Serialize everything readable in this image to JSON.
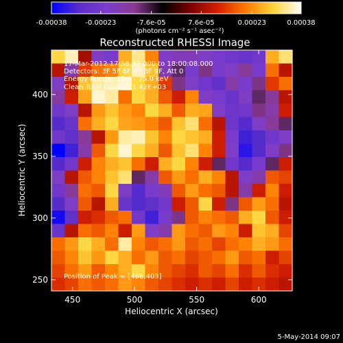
{
  "chart_data": {
    "type": "heatmap",
    "title": "Reconstructed RHESSI Image",
    "xlabel": "Heliocentric X (arcsec)",
    "ylabel": "Heliocentric Y (arcsec)",
    "xlim": [
      433,
      627
    ],
    "ylim": [
      241,
      436
    ],
    "x_ticks": [
      450,
      500,
      550,
      600
    ],
    "y_ticks": [
      250,
      300,
      350,
      400
    ],
    "grid": false,
    "colorbar": {
      "range": [
        -0.00038,
        0.00038
      ],
      "tick_values": [
        -0.00038,
        -0.00023,
        -7.6e-05,
        7.6e-05,
        0.00023,
        0.00038
      ],
      "tick_labels": [
        "-0.00038",
        "-0.00023",
        "-7.6e-05",
        "7.6e-05",
        "0.00023",
        "0.00038"
      ],
      "unit_label": "(photons cm⁻² s⁻¹ asec⁻²)",
      "colors": [
        "#0000ff",
        "#5a2ec8",
        "#7d3ccc",
        "#8a3a90",
        "#000000",
        "#7a0000",
        "#d42000",
        "#ff7a00",
        "#ffd43a",
        "#ffffff"
      ]
    },
    "annotations": {
      "time": "17-Mar-2012 17:58:32.000 to 18:00:08.000",
      "detectors": "Detectors: 3F 5F 6F 7F 8F 9F, Att 0",
      "energy": "Energy Range: 12.0 - 25.0 keV",
      "clean": "Clean     Total Counts: 1.42E+03",
      "peak": "Position of Peak = [486,403]"
    },
    "peak_position": [
      486,
      403
    ],
    "z": [
      [
        0.0003,
        0.00035,
        8e-05,
        -0.0002,
        -0.00022,
        0.00026,
        0.00033,
        0.00022,
        -0.0002,
        -0.00018,
        -0.00018,
        -0.0002,
        -0.00022,
        -0.00024,
        -0.00026,
        -0.00024,
        0.00026,
        0.00032
      ],
      [
        0.0001,
        -0.00016,
        0.00015,
        0.0002,
        0.00022,
        0.0003,
        0.00035,
        0.00028,
        -0.00018,
        -0.0001,
        -0.00022,
        -0.00012,
        -0.00022,
        -0.0002,
        -0.00014,
        -0.00022,
        0.0002,
        0.0001
      ],
      [
        -0.0002,
        0.0001,
        0.00028,
        0.00034,
        0.00035,
        0.00036,
        0.0003,
        0.00026,
        0.00015,
        -0.00012,
        -0.0002,
        -0.00024,
        -0.00028,
        -0.00016,
        -0.00022,
        -0.00012,
        0.00015,
        0.0002
      ],
      [
        -0.00015,
        0.00012,
        0.00025,
        0.00036,
        0.00034,
        0.0002,
        0.0003,
        0.00026,
        0.00018,
        0.00012,
        0.00022,
        -0.0002,
        -0.00022,
        -0.00026,
        -0.0002,
        -0.0001,
        -0.00014,
        0.0001
      ],
      [
        -0.00024,
        -0.0002,
        0.0001,
        0.00024,
        0.00028,
        0.00024,
        0.00022,
        0.0003,
        0.00026,
        0.00018,
        0.00026,
        0.00025,
        -0.0002,
        -0.00025,
        -0.00024,
        -0.00012,
        -0.00016,
        0.00012
      ],
      [
        -0.0003,
        -0.00026,
        0.0002,
        0.00026,
        0.0003,
        0.00025,
        0.00024,
        0.00022,
        0.00018,
        0.00028,
        0.00032,
        0.0002,
        0.0001,
        -0.00025,
        -0.0003,
        -0.0002,
        -0.00014,
        -0.0001
      ],
      [
        -0.00024,
        -0.00028,
        -0.00014,
        0.0001,
        0.00024,
        0.00034,
        0.00035,
        0.00028,
        0.00022,
        0.0003,
        0.00028,
        0.00026,
        0.00012,
        -0.00022,
        -0.00032,
        -0.0003,
        -0.00024,
        -0.0002
      ],
      [
        -0.00038,
        -0.00032,
        -0.00016,
        0.00018,
        0.0003,
        0.00036,
        0.0003,
        0.00026,
        0.00018,
        0.00028,
        0.00032,
        0.00022,
        0.00012,
        -0.0002,
        -0.00034,
        -0.0003,
        -0.0002,
        -0.00012
      ],
      [
        -0.0003,
        -0.00024,
        0.00012,
        0.00022,
        0.00026,
        0.00028,
        0.0002,
        0.00012,
        0.00026,
        0.0003,
        0.00022,
        0.00012,
        -0.0001,
        -0.00024,
        -0.0003,
        -0.00022,
        -0.0001,
        0.00012
      ],
      [
        -0.0002,
        0.0001,
        0.00018,
        0.00022,
        0.00028,
        0.00032,
        -0.0001,
        -0.00016,
        0.00018,
        0.00024,
        0.0002,
        0.00026,
        0.00022,
        0.0001,
        -0.0002,
        -0.00016,
        0.00018,
        0.00016
      ],
      [
        -0.00024,
        -0.00014,
        0.0002,
        0.00018,
        0.0003,
        -0.0002,
        -0.0003,
        -0.00022,
        -0.00018,
        0.00018,
        0.00024,
        0.0002,
        0.00018,
        0.0001,
        -0.00016,
        0.00012,
        0.00022,
        0.00012
      ],
      [
        -0.0003,
        -0.0002,
        0.00018,
        0.0001,
        0.00026,
        -0.00026,
        -0.0003,
        -0.00028,
        -0.00024,
        0.00012,
        0.00018,
        0.0003,
        0.00012,
        -0.00012,
        0.00018,
        0.00024,
        0.0002,
        0.0001
      ],
      [
        -0.00036,
        -0.00028,
        0.00012,
        0.00014,
        0.00018,
        0.0002,
        -0.00024,
        -0.00032,
        -0.00022,
        -0.00012,
        0.00018,
        0.00022,
        0.0002,
        0.00018,
        0.00026,
        0.0003,
        0.00018,
        0.00012
      ],
      [
        -0.00026,
        0.0001,
        0.0002,
        0.00018,
        0.00022,
        0.00012,
        0.00024,
        -0.0002,
        -0.00016,
        0.00024,
        0.0002,
        0.00018,
        0.00024,
        0.00022,
        0.00012,
        0.00028,
        0.00026,
        0.00016
      ],
      [
        0.0002,
        0.00024,
        0.0003,
        0.00026,
        0.0002,
        0.00034,
        0.00022,
        0.00018,
        0.0002,
        0.00024,
        0.00018,
        0.0002,
        0.00016,
        0.0002,
        0.00022,
        0.00026,
        0.00024,
        0.0002
      ],
      [
        0.00018,
        0.00022,
        0.00028,
        0.00024,
        0.0003,
        0.00026,
        0.0002,
        0.00024,
        0.00018,
        0.0002,
        0.00016,
        0.00018,
        0.0002,
        0.00024,
        0.00018,
        0.0002,
        0.00012,
        0.00016
      ],
      [
        0.00016,
        0.0002,
        0.00024,
        0.00018,
        0.00022,
        0.00026,
        0.0003,
        0.00022,
        0.00018,
        0.00016,
        0.00014,
        0.00018,
        0.00016,
        0.0002,
        0.00014,
        0.00018,
        0.00014,
        0.00012
      ],
      [
        0.00014,
        0.00016,
        0.0002,
        0.00018,
        0.0002,
        0.00024,
        0.00022,
        0.00018,
        0.00016,
        0.00014,
        0.00012,
        0.00014,
        0.00012,
        0.00016,
        0.00012,
        0.00014,
        0.00012,
        0.0001
      ]
    ]
  },
  "footer": {
    "date": "5-May-2014 09:07"
  }
}
